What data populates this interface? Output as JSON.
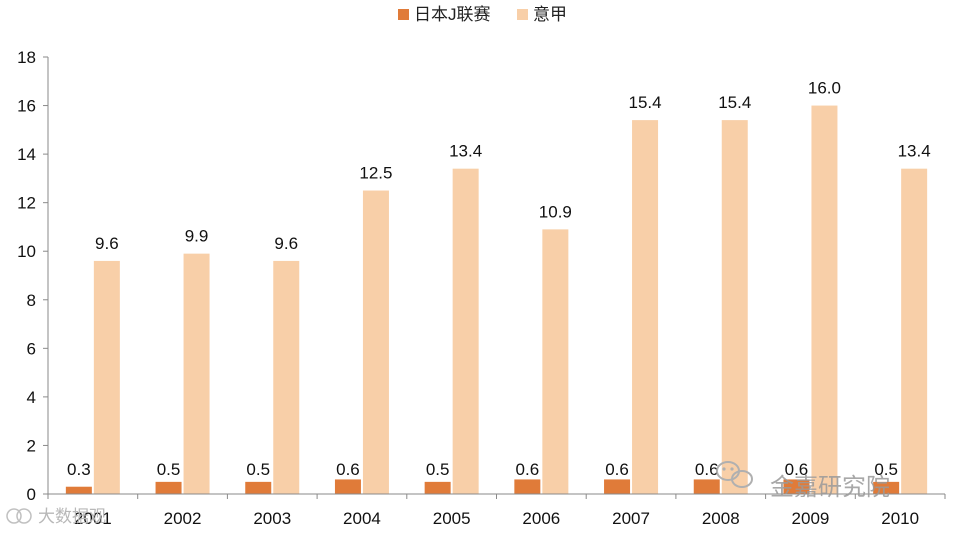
{
  "chart_data": {
    "type": "bar",
    "categories": [
      "2001",
      "2002",
      "2003",
      "2004",
      "2005",
      "2006",
      "2007",
      "2008",
      "2009",
      "2010"
    ],
    "series": [
      {
        "name": "日本J联赛",
        "color": "#e07b39",
        "values": [
          0.3,
          0.5,
          0.5,
          0.6,
          0.5,
          0.6,
          0.6,
          0.6,
          0.6,
          0.5
        ],
        "labels": [
          "0.3",
          "0.5",
          "0.5",
          "0.6",
          "0.5",
          "0.6",
          "0.6",
          "0.6",
          "0.6",
          "0.5"
        ]
      },
      {
        "name": "意甲",
        "color": "#f8cfa8",
        "values": [
          9.6,
          9.9,
          9.6,
          12.5,
          13.4,
          10.9,
          15.4,
          15.4,
          16.0,
          13.4
        ],
        "labels": [
          "9.6",
          "9.9",
          "9.6",
          "12.5",
          "13.4",
          "10.9",
          "15.4",
          "15.4",
          "16.0",
          "13.4"
        ]
      }
    ],
    "ylim": [
      0,
      18
    ],
    "yticks": [
      "0",
      "2",
      "4",
      "6",
      "8",
      "10",
      "12",
      "14",
      "16",
      "18"
    ],
    "grid": false,
    "legend_position": "top-center",
    "title": "",
    "xlabel": "",
    "ylabel": ""
  },
  "watermarks": {
    "bottom_right": "金嘉研究院",
    "bottom_left": "大数据观"
  }
}
